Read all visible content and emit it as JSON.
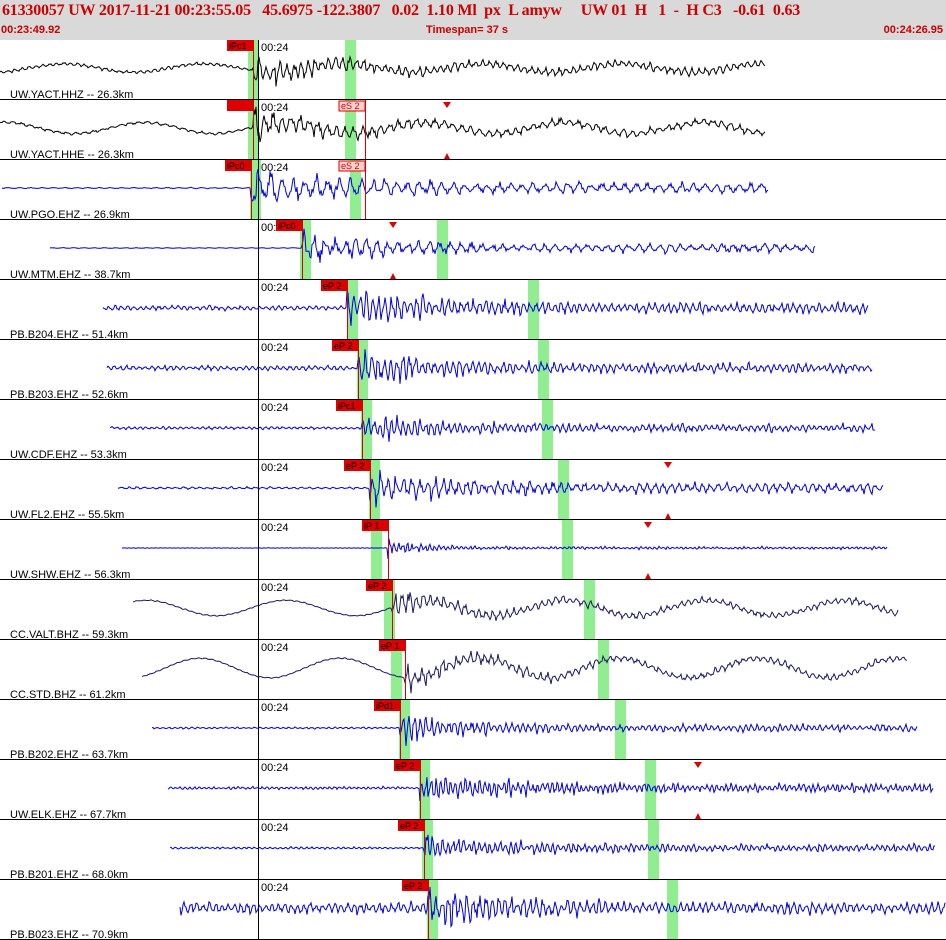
{
  "header": {
    "title": "61330057 UW 2017-11-21 00:23:55.05   45.6975 -122.3807   0.02  1.10 Ml  px  L amyw     UW 01  H   1  -  H C3   -0.61  0.63",
    "start_time": "00:23:49.92",
    "timespan": "Timespan=  37 s",
    "end_time": "00:24:26.95"
  },
  "tick_label": "00:24",
  "colors": {
    "header_text": "#cc0000",
    "blue_trace": "#0000dd",
    "black_trace": "#000000",
    "navy_trace": "#1a1a5e",
    "pick": "#dd0000",
    "window": "#90ee90"
  },
  "traces": [
    {
      "label": "UW.YACT.HHZ -- 26.3km",
      "color": "black",
      "start": 0,
      "end": 765,
      "onset": 253,
      "p_label": "iPc1",
      "s_label": "",
      "s_x": 0,
      "green1": 253,
      "green2": 350,
      "marker": 0,
      "amp": 0.55,
      "pre": 0.15,
      "freq": 0.9,
      "lowfreq": 0.3
    },
    {
      "label": "UW.YACT.HHE -- 26.3km",
      "color": "black",
      "start": 0,
      "end": 765,
      "onset": 253,
      "p_label": "",
      "s_label": "eS 2",
      "s_x": 365,
      "green1": 253,
      "green2": 350,
      "marker": 447,
      "amp": 0.55,
      "pre": 0.12,
      "freq": 0.7,
      "lowfreq": 0.4
    },
    {
      "label": "UW.PGO.EHZ -- 26.9km",
      "color": "blue",
      "start": 2,
      "end": 768,
      "onset": 251,
      "p_label": "iPc0",
      "s_label": "eS 2",
      "s_x": 365,
      "green1": 255,
      "green2": 355,
      "marker": 0,
      "amp": 0.75,
      "pre": 0.05,
      "freq": 0.55,
      "lowfreq": 0.0
    },
    {
      "label": "UW.MTM.EHZ -- 38.7km",
      "color": "blue",
      "start": 50,
      "end": 815,
      "onset": 302,
      "p_label": "iPc0",
      "s_label": "",
      "s_x": 0,
      "green1": 305,
      "green2": 442,
      "marker": 393,
      "amp": 0.6,
      "pre": 0.03,
      "freq": 0.6,
      "lowfreq": 0.0
    },
    {
      "label": "PB.B204.EHZ -- 51.4km",
      "color": "blue",
      "start": 103,
      "end": 868,
      "onset": 347,
      "p_label": "eP 2",
      "s_label": "",
      "s_x": 0,
      "green1": 352,
      "green2": 533,
      "marker": 0,
      "amp": 0.75,
      "pre": 0.2,
      "freq": 1.0,
      "lowfreq": 0.0
    },
    {
      "label": "PB.B203.EHZ -- 52.6km",
      "color": "blue",
      "start": 107,
      "end": 872,
      "onset": 358,
      "p_label": "eP 2",
      "s_label": "",
      "s_x": 0,
      "green1": 362,
      "green2": 543,
      "marker": 0,
      "amp": 0.65,
      "pre": 0.2,
      "freq": 1.0,
      "lowfreq": 0.0
    },
    {
      "label": "UW.CDF.EHZ -- 53.3km",
      "color": "blue",
      "start": 110,
      "end": 875,
      "onset": 362,
      "p_label": "iPc1",
      "s_label": "",
      "s_x": 0,
      "green1": 366,
      "green2": 547,
      "marker": 0,
      "amp": 0.55,
      "pre": 0.12,
      "freq": 1.1,
      "lowfreq": 0.0
    },
    {
      "label": "UW.FL2.EHZ -- 55.5km",
      "color": "blue",
      "start": 118,
      "end": 883,
      "onset": 370,
      "p_label": "eP 2",
      "s_label": "",
      "s_x": 0,
      "green1": 374,
      "green2": 563,
      "marker": 668,
      "amp": 0.7,
      "pre": 0.1,
      "freq": 0.8,
      "lowfreq": 0.0
    },
    {
      "label": "UW.SHW.EHZ -- 56.3km",
      "color": "blue",
      "start": 122,
      "end": 887,
      "onset": 388,
      "p_label": "iP 1",
      "s_label": "",
      "s_x": 0,
      "green1": 376,
      "green2": 567,
      "marker": 648,
      "amp": 0.55,
      "pre": 0.02,
      "freq": 1.4,
      "lowfreq": 0.0,
      "decay": 1
    },
    {
      "label": "CC.VALT.BHZ -- 59.3km",
      "color": "navy",
      "start": 133,
      "end": 898,
      "onset": 392,
      "p_label": "eP 2",
      "s_label": "",
      "s_x": 0,
      "green1": 389,
      "green2": 589,
      "marker": 0,
      "amp": 0.45,
      "pre": 0.05,
      "freq": 0.9,
      "lowfreq": 0.55
    },
    {
      "label": "CC.STD.BHZ -- 61.2km",
      "color": "navy",
      "start": 142,
      "end": 907,
      "onset": 405,
      "p_label": "eP 1",
      "s_label": "",
      "s_x": 0,
      "green1": 396,
      "green2": 603,
      "marker": 0,
      "amp": 0.45,
      "pre": 0.05,
      "freq": 0.9,
      "lowfreq": 0.7
    },
    {
      "label": "PB.B202.EHZ -- 63.7km",
      "color": "blue",
      "start": 152,
      "end": 917,
      "onset": 400,
      "p_label": "iPd1",
      "s_label": "",
      "s_x": 0,
      "green1": 404,
      "green2": 620,
      "marker": 0,
      "amp": 0.5,
      "pre": 0.08,
      "freq": 1.1,
      "lowfreq": 0.0
    },
    {
      "label": "UW.ELK.EHZ -- 67.7km",
      "color": "blue",
      "start": 168,
      "end": 933,
      "onset": 420,
      "p_label": "eP 2",
      "s_label": "",
      "s_x": 0,
      "green1": 424,
      "green2": 650,
      "marker": 698,
      "amp": 0.6,
      "pre": 0.12,
      "freq": 1.3,
      "lowfreq": 0.0
    },
    {
      "label": "PB.B201.EHZ -- 68.0km",
      "color": "blue",
      "start": 170,
      "end": 935,
      "onset": 424,
      "p_label": "eP 2",
      "s_label": "",
      "s_x": 0,
      "green1": 427,
      "green2": 653,
      "marker": 0,
      "amp": 0.5,
      "pre": 0.1,
      "freq": 1.2,
      "lowfreq": 0.0
    },
    {
      "label": "PB.B023.EHZ -- 70.9km",
      "color": "blue",
      "start": 180,
      "end": 945,
      "onset": 428,
      "p_label": "eP 2",
      "s_label": "",
      "s_x": 0,
      "green1": 432,
      "green2": 672,
      "marker": 0,
      "amp": 0.8,
      "pre": 0.5,
      "freq": 1.0,
      "lowfreq": 0.0
    }
  ]
}
